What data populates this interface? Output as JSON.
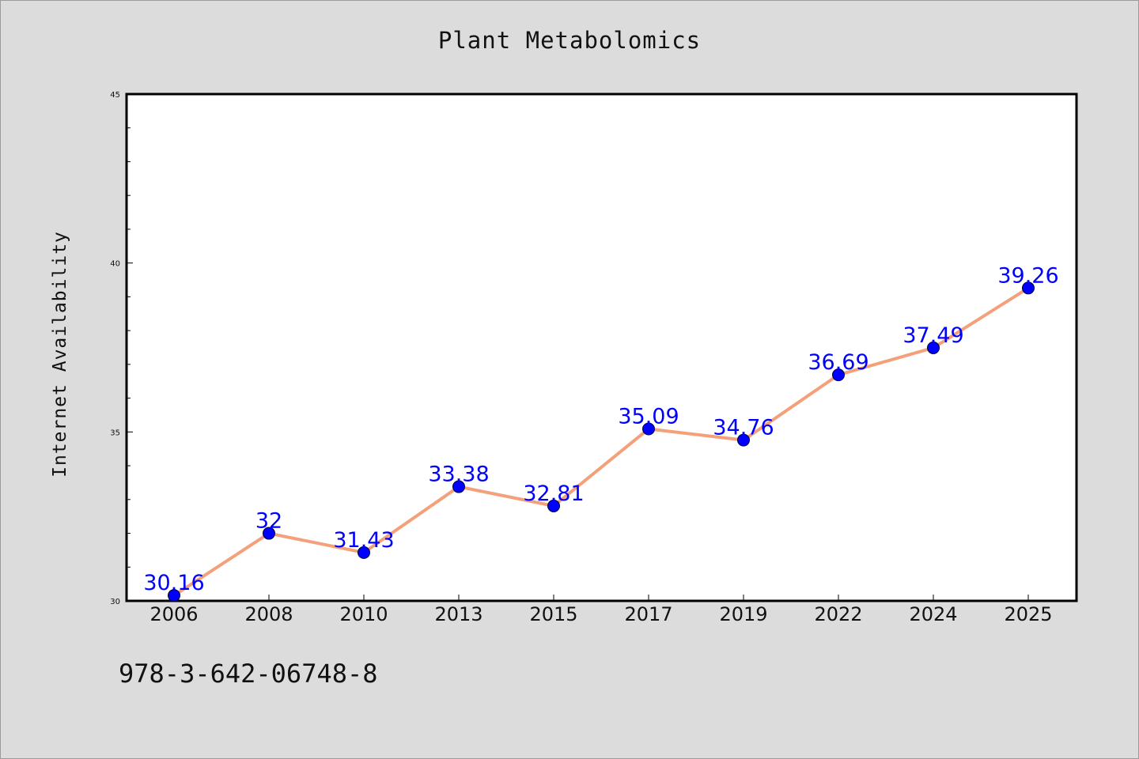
{
  "title": "Plant Metabolomics",
  "footer": {
    "isbn": "978-3-642-06748-8"
  },
  "colors": {
    "background": "#dcdcdc",
    "plot_background": "#ffffff",
    "line": "#f4a07a",
    "marker": "#0000ff",
    "data_label": "#0000ff"
  },
  "chart_data": {
    "type": "line",
    "title": "Plant Metabolomics",
    "xlabel": "",
    "ylabel": "Internet Availability",
    "categories": [
      "2006",
      "2008",
      "2010",
      "2013",
      "2015",
      "2017",
      "2019",
      "2022",
      "2024",
      "2025"
    ],
    "series": [
      {
        "values": [
          30.16,
          32,
          31.43,
          33.38,
          32.81,
          35.09,
          34.76,
          36.69,
          37.49,
          39.26
        ],
        "value_labels": [
          "30.16",
          "32",
          "31.43",
          "33.38",
          "32.81",
          "35.09",
          "34.76",
          "36.69",
          "37.49",
          "39.26"
        ]
      }
    ],
    "ylim": [
      30,
      45
    ],
    "yticks": [
      "30",
      "35",
      "40",
      "45"
    ],
    "y_minor_step": 1,
    "grid": false,
    "legend": "none"
  }
}
